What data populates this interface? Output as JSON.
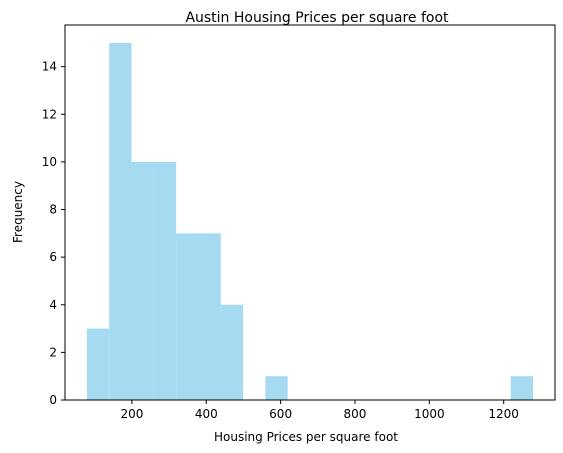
{
  "chart_data": {
    "type": "bar",
    "title": "Austin Housing Prices per square foot",
    "xlabel": "Housing Prices per square foot",
    "ylabel": "Frequency",
    "bins": [
      {
        "start": 79,
        "end": 139,
        "count": 3
      },
      {
        "start": 139,
        "end": 199,
        "count": 15
      },
      {
        "start": 199,
        "end": 259,
        "count": 10
      },
      {
        "start": 259,
        "end": 319,
        "count": 10
      },
      {
        "start": 319,
        "end": 379,
        "count": 7
      },
      {
        "start": 379,
        "end": 439,
        "count": 7
      },
      {
        "start": 439,
        "end": 499,
        "count": 4
      },
      {
        "start": 499,
        "end": 559,
        "count": 0
      },
      {
        "start": 559,
        "end": 619,
        "count": 1
      },
      {
        "start": 619,
        "end": 679,
        "count": 0
      },
      {
        "start": 679,
        "end": 739,
        "count": 0
      },
      {
        "start": 739,
        "end": 799,
        "count": 0
      },
      {
        "start": 799,
        "end": 859,
        "count": 0
      },
      {
        "start": 859,
        "end": 919,
        "count": 0
      },
      {
        "start": 919,
        "end": 979,
        "count": 0
      },
      {
        "start": 979,
        "end": 1039,
        "count": 0
      },
      {
        "start": 1039,
        "end": 1099,
        "count": 0
      },
      {
        "start": 1099,
        "end": 1159,
        "count": 0
      },
      {
        "start": 1159,
        "end": 1219,
        "count": 0
      },
      {
        "start": 1219,
        "end": 1279,
        "count": 1
      }
    ],
    "xlim": [
      20,
      1338
    ],
    "ylim": [
      0,
      15.75
    ],
    "xticks": [
      200,
      400,
      600,
      800,
      1000,
      1200
    ],
    "yticks": [
      0,
      2,
      4,
      6,
      8,
      10,
      12,
      14
    ],
    "bar_color": "#87CEEB",
    "bar_opacity": 0.75,
    "grid": false
  }
}
